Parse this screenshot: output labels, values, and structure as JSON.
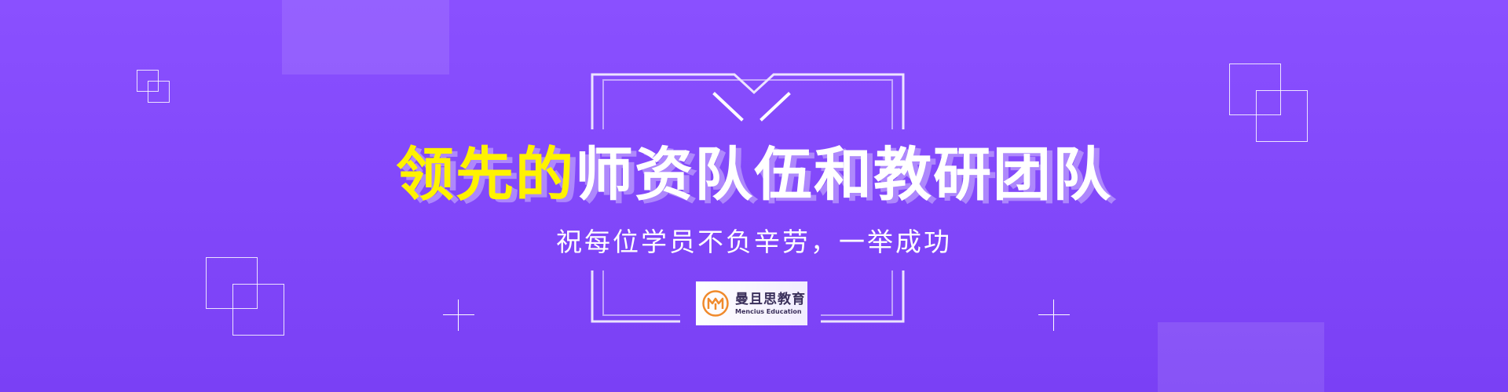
{
  "banner": {
    "headline_highlight": "领先的",
    "headline_rest": "师资队伍和教研团队",
    "subtitle": "祝每位学员不负辛劳，一举成功",
    "logo": {
      "name": "曼且思教育",
      "subtitle": "Mencius Education",
      "icon": "mencius-logo-icon"
    }
  },
  "colors": {
    "background_top": "#8a50ff",
    "background_bottom": "#7a40f5",
    "headline_highlight": "#fff200",
    "text": "#ffffff",
    "logo_orange": "#f08a2c"
  }
}
